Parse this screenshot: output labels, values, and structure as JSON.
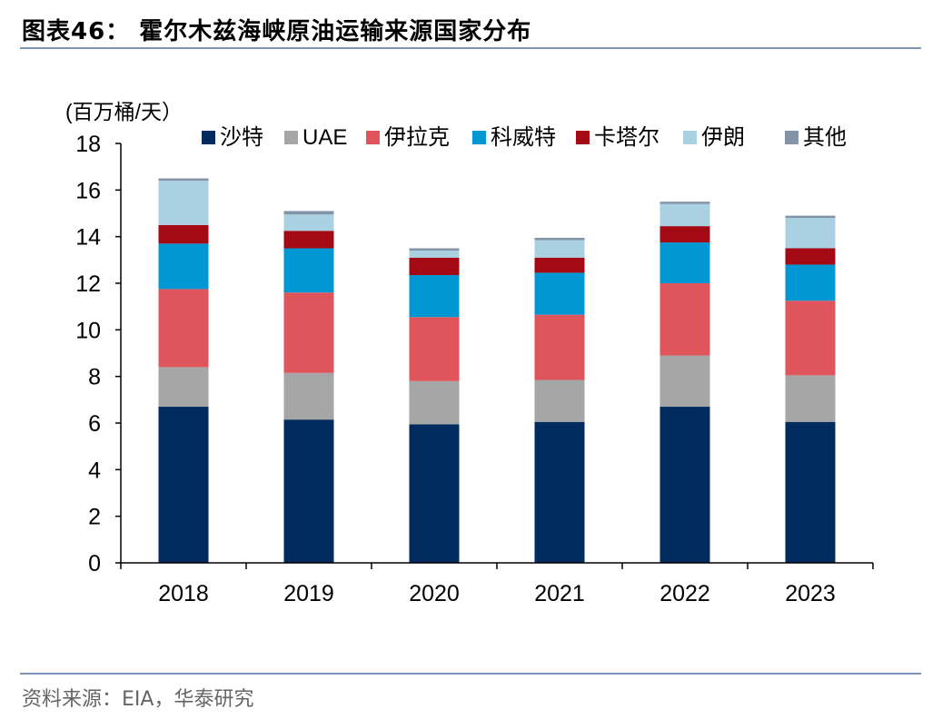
{
  "figure": {
    "title": "图表46： 霍尔木兹海峡原油运输来源国家分布",
    "source": "资料来源：EIA，华泰研究"
  },
  "chart_data": {
    "type": "bar",
    "stacked": true,
    "unit_label": "(百万桶/天）",
    "categories": [
      "2018",
      "2019",
      "2020",
      "2021",
      "2022",
      "2023"
    ],
    "ylim": [
      0,
      18
    ],
    "yticks": [
      "0",
      "2",
      "4",
      "6",
      "8",
      "10",
      "12",
      "14",
      "16",
      "18"
    ],
    "legend_position": "top",
    "series": [
      {
        "name": "沙特",
        "color": "#002b5e",
        "values": [
          6.7,
          6.15,
          5.95,
          6.05,
          6.7,
          6.05
        ]
      },
      {
        "name": "UAE",
        "color": "#a6a6a6",
        "values": [
          1.7,
          2.0,
          1.85,
          1.8,
          2.2,
          2.0
        ]
      },
      {
        "name": "伊拉克",
        "color": "#e0555c",
        "values": [
          3.35,
          3.45,
          2.75,
          2.8,
          3.1,
          3.2
        ]
      },
      {
        "name": "科威特",
        "color": "#0097d3",
        "values": [
          1.95,
          1.9,
          1.8,
          1.8,
          1.75,
          1.55
        ]
      },
      {
        "name": "卡塔尔",
        "color": "#a30a14",
        "values": [
          0.8,
          0.75,
          0.75,
          0.65,
          0.7,
          0.7
        ]
      },
      {
        "name": "伊朗",
        "color": "#a9d1e1",
        "values": [
          1.9,
          0.7,
          0.3,
          0.75,
          0.95,
          1.3
        ]
      },
      {
        "name": "其他",
        "color": "#8494a8",
        "values": [
          0.1,
          0.15,
          0.1,
          0.1,
          0.1,
          0.1
        ]
      }
    ]
  }
}
